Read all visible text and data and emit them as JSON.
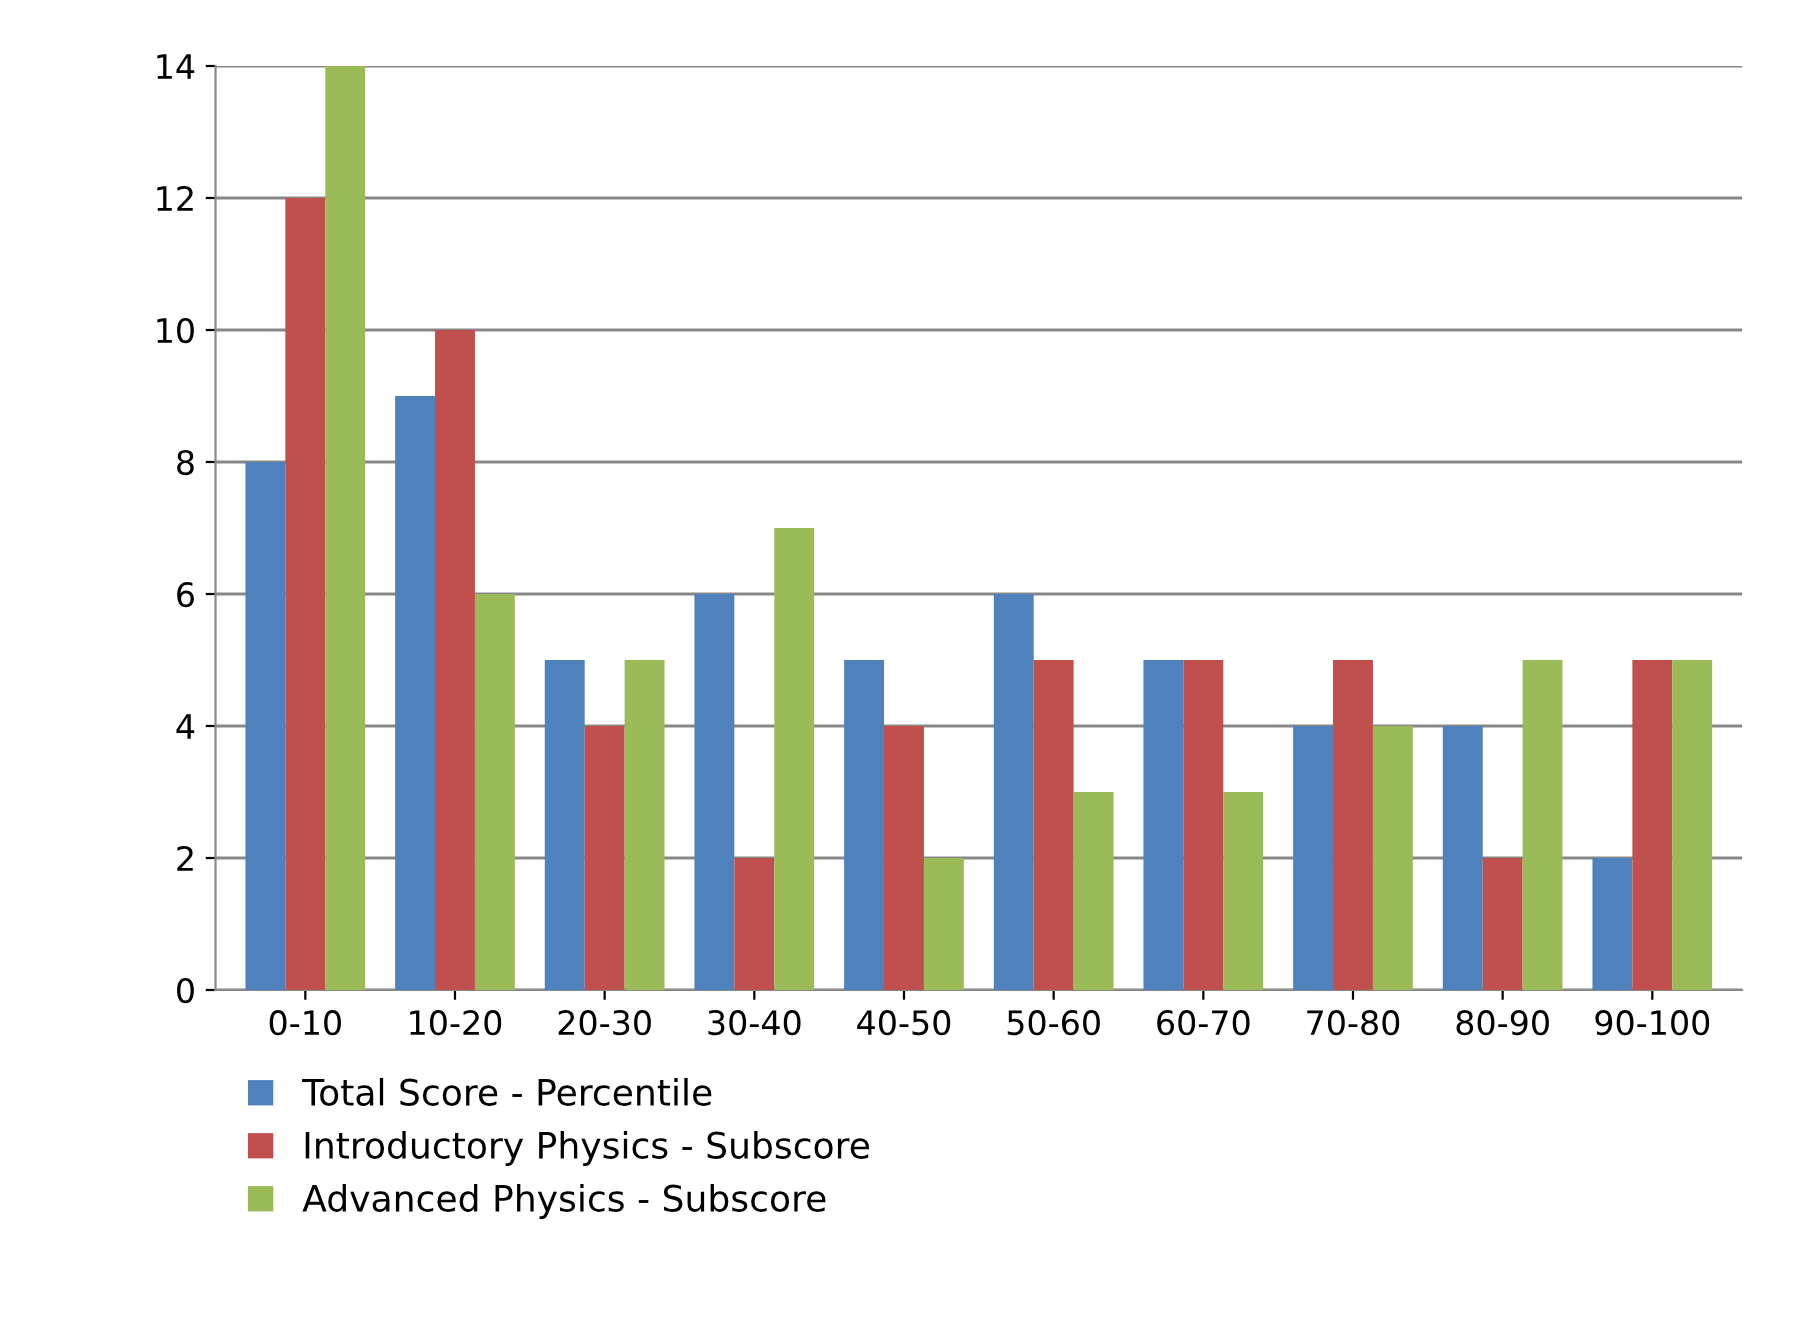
{
  "chart_data": {
    "type": "bar",
    "categories": [
      "0-10",
      "10-20",
      "20-30",
      "30-40",
      "40-50",
      "50-60",
      "60-70",
      "70-80",
      "80-90",
      "90-100"
    ],
    "series": [
      {
        "name": "Total Score - Percentile",
        "color": "#4f81bd",
        "values": [
          8,
          9,
          5,
          6,
          5,
          6,
          5,
          4,
          4,
          2
        ]
      },
      {
        "name": "Introductory Physics - Subscore",
        "color": "#c0504d",
        "values": [
          12,
          10,
          4,
          2,
          4,
          5,
          5,
          5,
          2,
          5
        ]
      },
      {
        "name": "Advanced Physics - Subscore",
        "color": "#9bbb59",
        "values": [
          14,
          6,
          5,
          7,
          2,
          3,
          3,
          4,
          5,
          5
        ]
      }
    ],
    "ylim": [
      0,
      14
    ],
    "yticks": [
      0,
      2,
      4,
      6,
      8,
      10,
      12,
      14
    ],
    "grid": "y",
    "legend": "bottom left"
  }
}
